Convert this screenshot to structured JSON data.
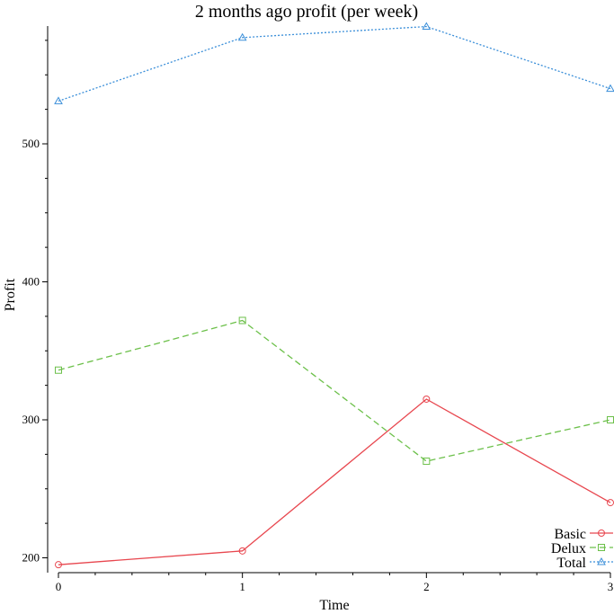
{
  "chart_data": {
    "type": "line",
    "title": "2 months ago profit (per week)",
    "xlabel": "Time",
    "ylabel": "Profit",
    "x": [
      0,
      1,
      2,
      3
    ],
    "xlim": [
      0,
      3
    ],
    "ylim": [
      190,
      585
    ],
    "xticks": [
      "0",
      "1",
      "2",
      "3"
    ],
    "yticks": [
      200,
      300,
      400,
      500
    ],
    "grid": false,
    "legend_position": "bottom-right",
    "series": [
      {
        "name": "Basic",
        "values": [
          195,
          205,
          315,
          240
        ],
        "color": "#e8474f",
        "dash": "solid",
        "marker": "circle"
      },
      {
        "name": "Delux",
        "values": [
          336,
          372,
          270,
          300
        ],
        "color": "#6cc04a",
        "dash": "dashed",
        "marker": "square"
      },
      {
        "name": "Total",
        "values": [
          531,
          577,
          585,
          540
        ],
        "color": "#3b8fd9",
        "dash": "dotted",
        "marker": "triangle"
      }
    ]
  }
}
